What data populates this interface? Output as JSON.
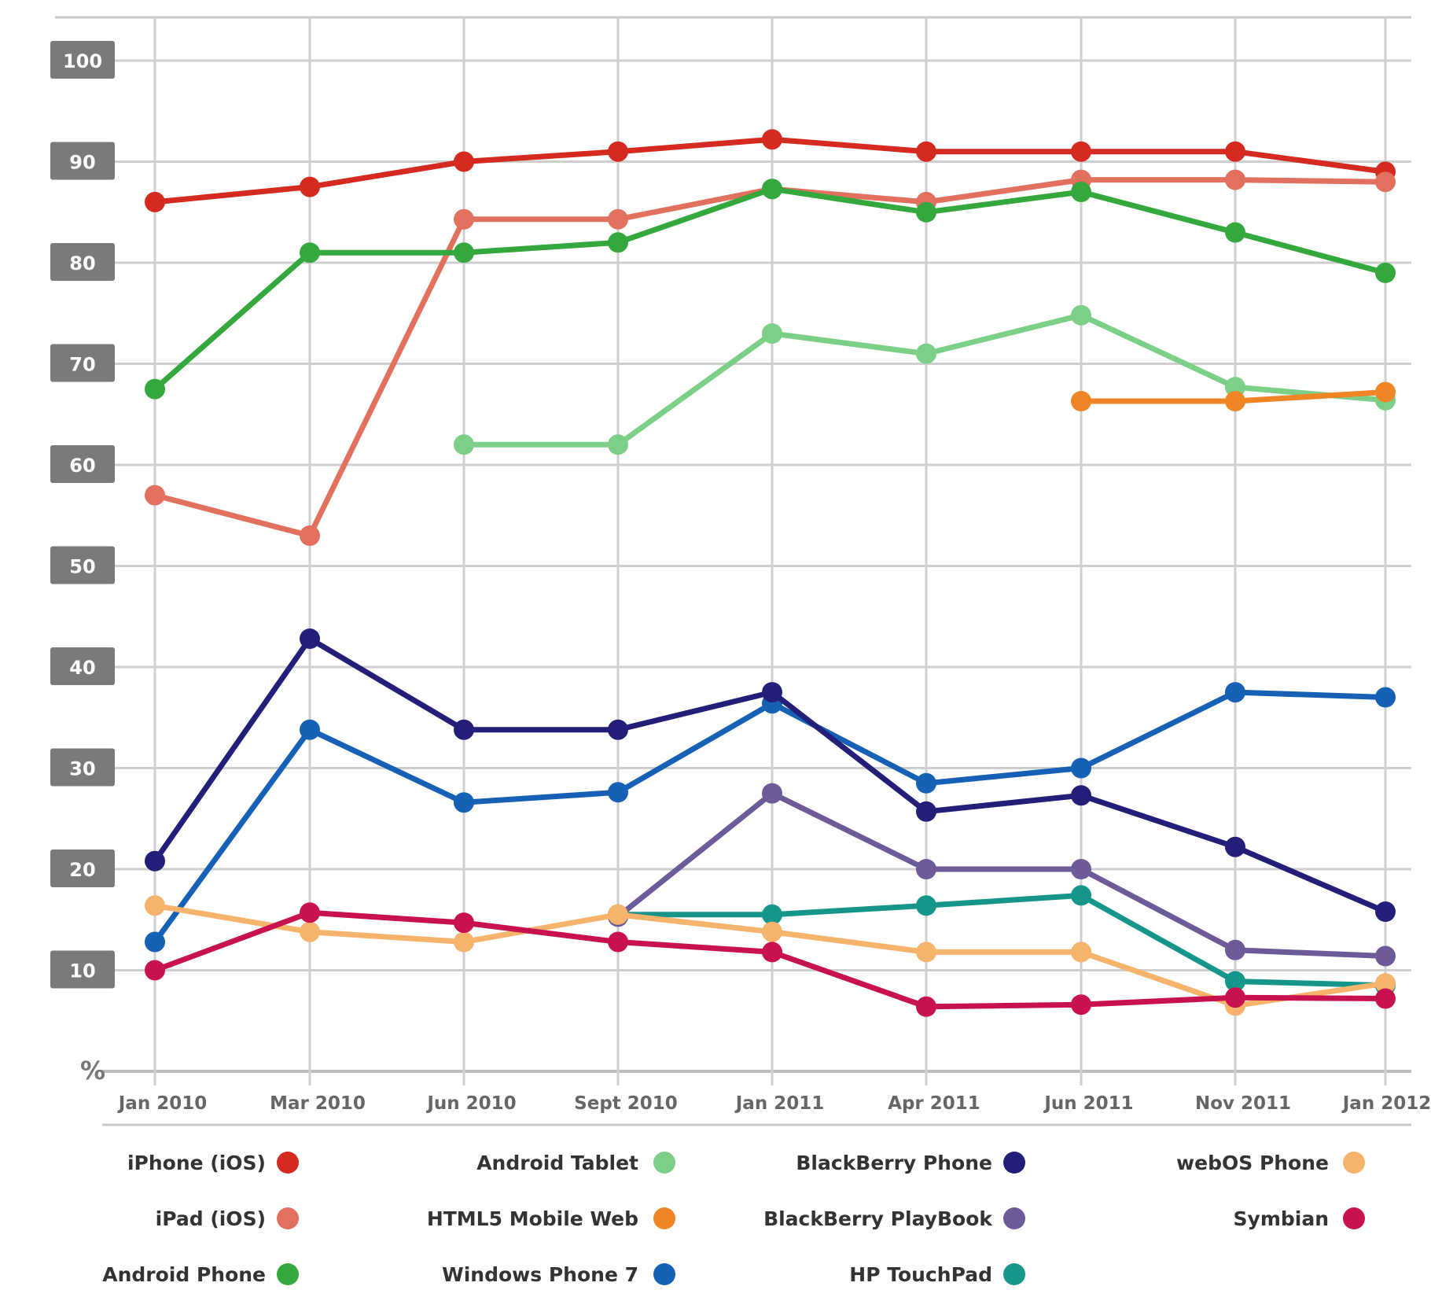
{
  "chart_data": {
    "type": "line",
    "ylabel": "%",
    "ylim": [
      0,
      100
    ],
    "yticks": [
      10,
      20,
      30,
      40,
      50,
      60,
      70,
      80,
      90,
      100
    ],
    "grid": true,
    "legend_position": "bottom",
    "categories": [
      "Jan 2010",
      "Mar 2010",
      "Jun 2010",
      "Sept 2010",
      "Jan 2011",
      "Apr 2011",
      "Jun 2011",
      "Nov 2011",
      "Jan 2012"
    ],
    "series": [
      {
        "name": "iPhone (iOS)",
        "color": "#d42a1f",
        "values": [
          86,
          87.5,
          90,
          91,
          92.2,
          91,
          91,
          91,
          89
        ]
      },
      {
        "name": "iPad (iOS)",
        "color": "#e2705f",
        "values": [
          57,
          53,
          84.3,
          84.3,
          87.3,
          86,
          88.2,
          88.2,
          88
        ]
      },
      {
        "name": "Android Phone",
        "color": "#34a83c",
        "values": [
          67.5,
          81,
          81,
          82,
          87.3,
          85,
          87,
          83,
          79
        ]
      },
      {
        "name": "Android Tablet",
        "color": "#7ccf86",
        "values": [
          null,
          null,
          62,
          62,
          73,
          71,
          74.8,
          67.7,
          66.4
        ]
      },
      {
        "name": "HTML5 Mobile Web",
        "color": "#f08526",
        "values": [
          null,
          null,
          null,
          null,
          null,
          null,
          66.3,
          66.3,
          67.2
        ]
      },
      {
        "name": "Windows Phone 7",
        "color": "#1660b5",
        "values": [
          12.8,
          33.8,
          26.6,
          27.6,
          36.4,
          28.5,
          30,
          37.5,
          37
        ]
      },
      {
        "name": "BlackBerry Phone",
        "color": "#231f78",
        "values": [
          20.8,
          42.8,
          33.8,
          33.8,
          37.5,
          25.7,
          27.3,
          22.2,
          15.8
        ]
      },
      {
        "name": "BlackBerry PlayBook",
        "color": "#6c5a99",
        "values": [
          null,
          null,
          null,
          15.3,
          27.5,
          20,
          20,
          12,
          11.4
        ]
      },
      {
        "name": "HP TouchPad",
        "color": "#16968a",
        "values": [
          null,
          null,
          null,
          15.5,
          15.5,
          16.4,
          17.4,
          8.9,
          8.5
        ]
      },
      {
        "name": "webOS Phone",
        "color": "#f6b36b",
        "values": [
          16.4,
          13.8,
          12.8,
          15.5,
          13.8,
          11.8,
          11.8,
          6.5,
          8.7
        ]
      },
      {
        "name": "Symbian",
        "color": "#c8124f",
        "values": [
          10,
          15.7,
          14.7,
          12.8,
          11.8,
          6.4,
          6.6,
          7.3,
          7.2
        ]
      }
    ]
  }
}
